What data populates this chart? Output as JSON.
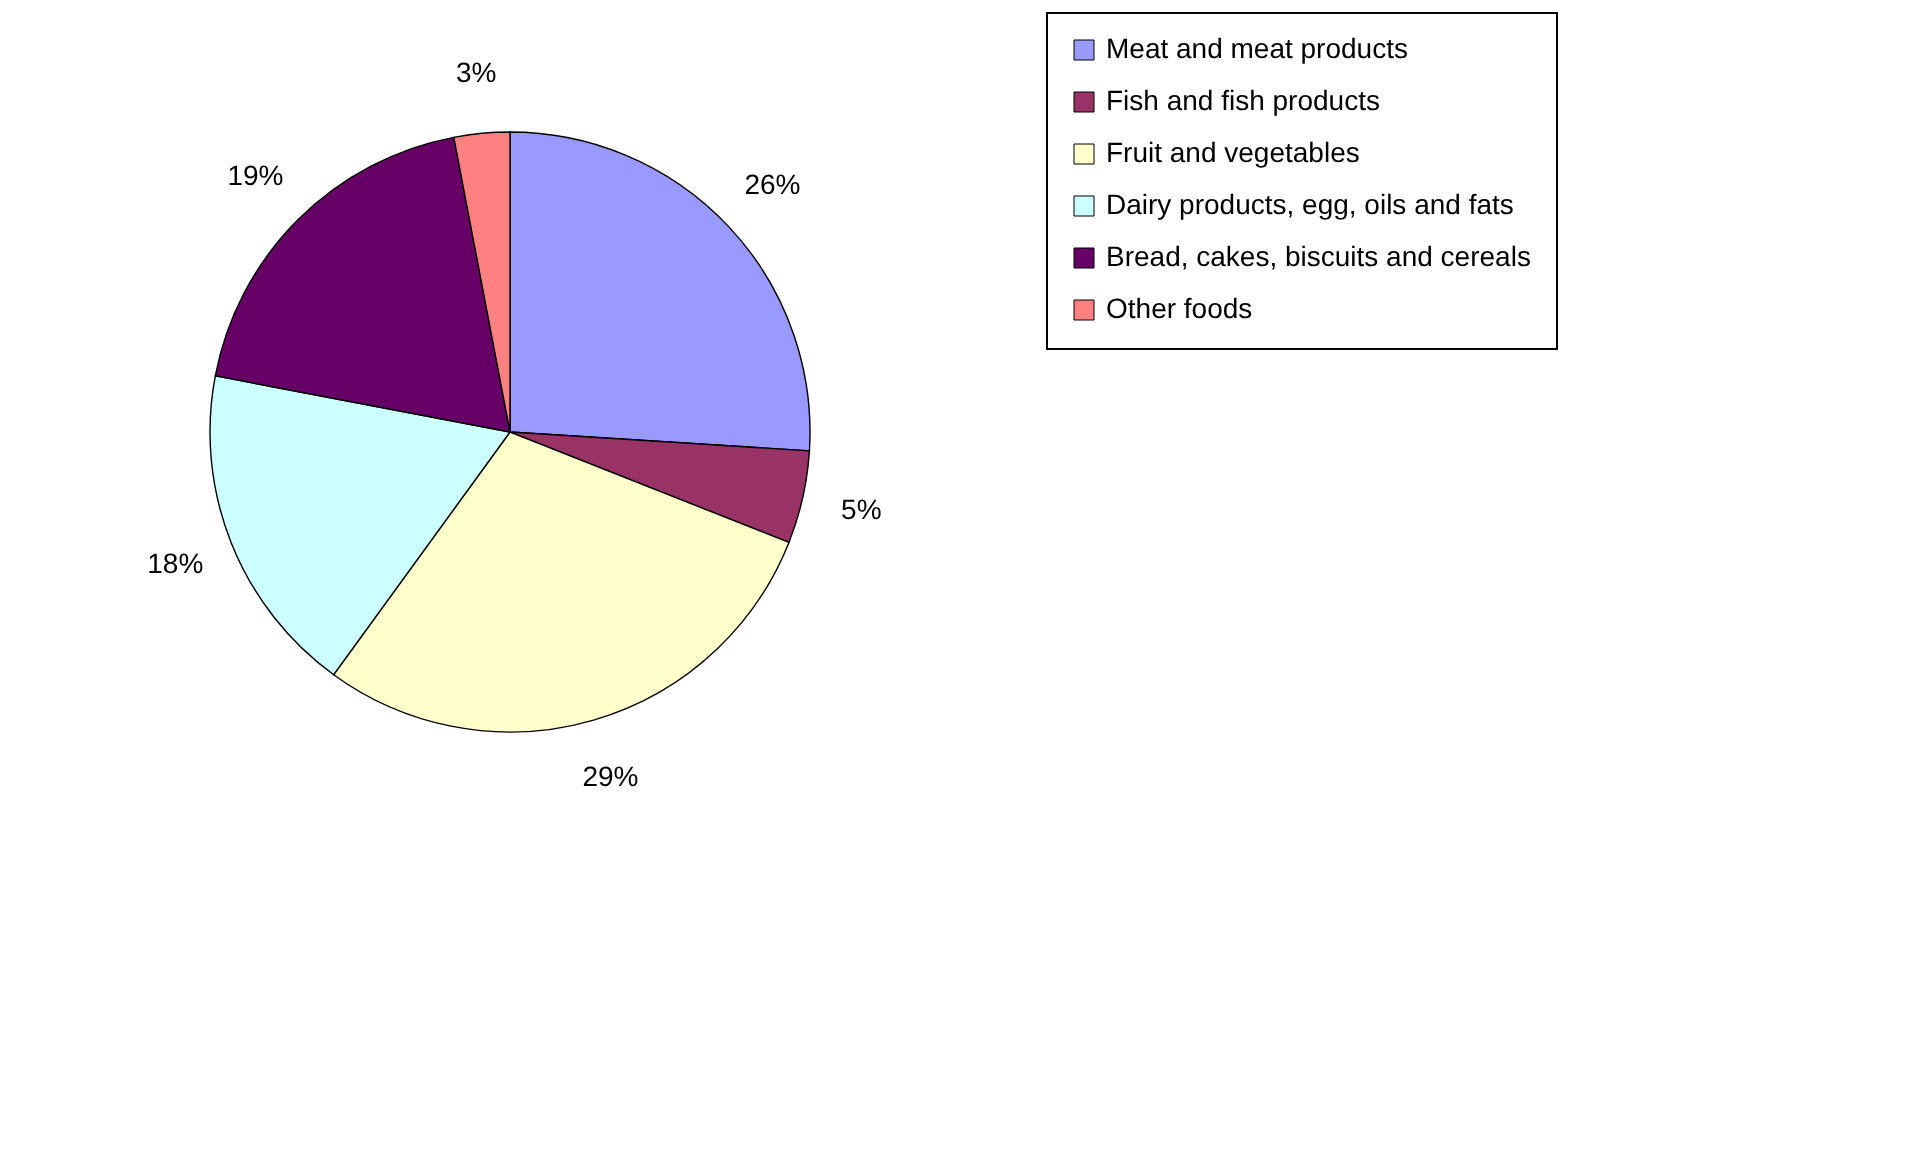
{
  "chart_data": {
    "type": "pie",
    "categories": [
      "Meat and meat products",
      "Fish and fish products",
      "Fruit and vegetables",
      "Dairy products, egg, oils and fats",
      "Bread, cakes, biscuits and cereals",
      "Other foods"
    ],
    "values": [
      26,
      5,
      29,
      18,
      19,
      3
    ],
    "colors": [
      "#9999ff",
      "#993366",
      "#ffffcc",
      "#ccffff",
      "#660066",
      "#ff8080"
    ],
    "value_labels": [
      "26%",
      "5%",
      "29%",
      "18%",
      "19%",
      "3%"
    ],
    "legend": "right"
  }
}
